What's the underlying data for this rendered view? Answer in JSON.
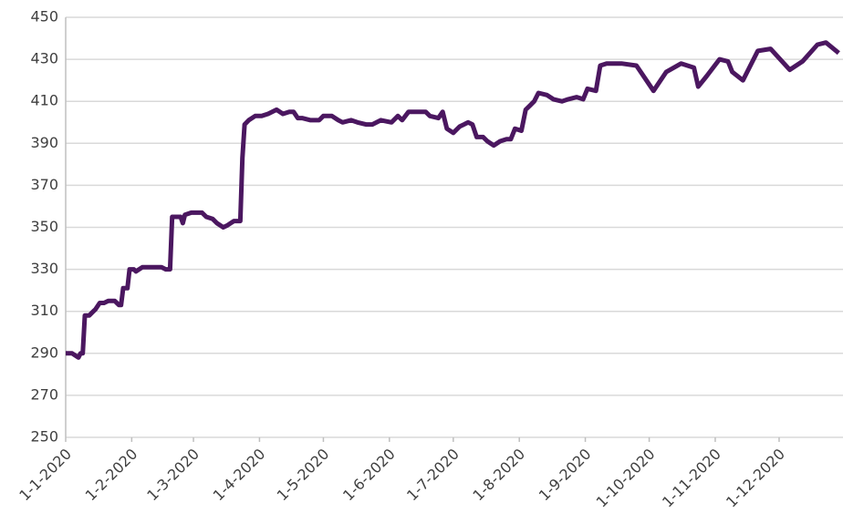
{
  "chart_data": {
    "type": "line",
    "x": [
      "1-1-2020",
      "4-1-2020",
      "7-1-2020",
      "8-1-2020",
      "9-1-2020",
      "10-1-2020",
      "12-1-2020",
      "14-1-2020",
      "15-1-2020",
      "17-1-2020",
      "19-1-2020",
      "21-1-2020",
      "24-1-2020",
      "26-1-2020",
      "27-1-2020",
      "28-1-2020",
      "30-1-2020",
      "31-1-2020",
      "2-2-2020",
      "3-2-2020",
      "6-2-2020",
      "9-2-2020",
      "11-2-2020",
      "13-2-2020",
      "15-2-2020",
      "17-2-2020",
      "19-2-2020",
      "20-2-2020",
      "24-2-2020",
      "25-2-2020",
      "26-2-2020",
      "29-2-2020",
      "5-3-2020",
      "7-3-2020",
      "10-3-2020",
      "12-3-2020",
      "15-3-2020",
      "17-3-2020",
      "20-3-2020",
      "23-3-2020",
      "24-3-2020",
      "25-3-2020",
      "27-3-2020",
      "30-3-2020",
      "2-4-2020",
      "5-4-2020",
      "9-4-2020",
      "12-4-2020",
      "15-4-2020",
      "17-4-2020",
      "19-4-2020",
      "21-4-2020",
      "25-4-2020",
      "27-4-2020",
      "29-4-2020",
      "1-5-2020",
      "5-5-2020",
      "8-5-2020",
      "10-5-2020",
      "14-5-2020",
      "17-5-2020",
      "21-5-2020",
      "24-5-2020",
      "28-5-2020",
      "2-6-2020",
      "5-6-2020",
      "7-6-2020",
      "10-6-2020",
      "14-6-2020",
      "18-6-2020",
      "20-6-2020",
      "24-6-2020",
      "26-6-2020",
      "28-6-2020",
      "1-7-2020",
      "4-7-2020",
      "8-7-2020",
      "10-7-2020",
      "12-7-2020",
      "15-7-2020",
      "17-7-2020",
      "20-7-2020",
      "23-7-2020",
      "26-7-2020",
      "28-7-2020",
      "30-7-2020",
      "2-8-2020",
      "4-8-2020",
      "6-8-2020",
      "8-8-2020",
      "10-8-2020",
      "14-8-2020",
      "17-8-2020",
      "21-8-2020",
      "24-8-2020",
      "28-8-2020",
      "31-8-2020",
      "2-9-2020",
      "6-9-2020",
      "8-9-2020",
      "11-9-2020",
      "18-9-2020",
      "25-9-2020",
      "3-10-2020",
      "9-10-2020",
      "16-10-2020",
      "22-10-2020",
      "24-10-2020",
      "28-10-2020",
      "3-11-2020",
      "7-11-2020",
      "9-11-2020",
      "14-11-2020",
      "21-11-2020",
      "27-11-2020",
      "6-12-2020",
      "12-12-2020",
      "19-12-2020",
      "23-12-2020",
      "29-12-2020"
    ],
    "series": [
      {
        "color": "#4b1760",
        "values": [
          290,
          290,
          288,
          290,
          290,
          308,
          308,
          310,
          311,
          314,
          314,
          315,
          315,
          313,
          313,
          321,
          321,
          330,
          330,
          329,
          331,
          331,
          331,
          331,
          331,
          330,
          330,
          355,
          355,
          352,
          356,
          357,
          357,
          355,
          354,
          352,
          350,
          351,
          353,
          353,
          383,
          399,
          401,
          403,
          403,
          404,
          406,
          404,
          405,
          405,
          402,
          402,
          401,
          401,
          401,
          403,
          403,
          401,
          400,
          401,
          400,
          399,
          399,
          401,
          400,
          403,
          401,
          405,
          405,
          405,
          403,
          402,
          405,
          397,
          395,
          398,
          400,
          399,
          393,
          393,
          391,
          389,
          391,
          392,
          392,
          397,
          396,
          406,
          408,
          410,
          414,
          413,
          411,
          410,
          411,
          412,
          411,
          416,
          415,
          427,
          428,
          428,
          427,
          415,
          424,
          428,
          426,
          417,
          422,
          430,
          429,
          424,
          420,
          434,
          435,
          425,
          429,
          437,
          438,
          433
        ]
      }
    ],
    "xlim": [
      "1-1-2020",
      "31-12-2020"
    ],
    "xticks": [
      "1-1-2020",
      "1-2-2020",
      "1-3-2020",
      "1-4-2020",
      "1-5-2020",
      "1-6-2020",
      "1-7-2020",
      "1-8-2020",
      "1-9-2020",
      "1-10-2020",
      "1-11-2020",
      "1-12-2020"
    ],
    "ylim": [
      250,
      450
    ],
    "yticks": [
      250,
      270,
      290,
      310,
      330,
      350,
      370,
      390,
      410,
      430,
      450
    ],
    "grid": true
  }
}
